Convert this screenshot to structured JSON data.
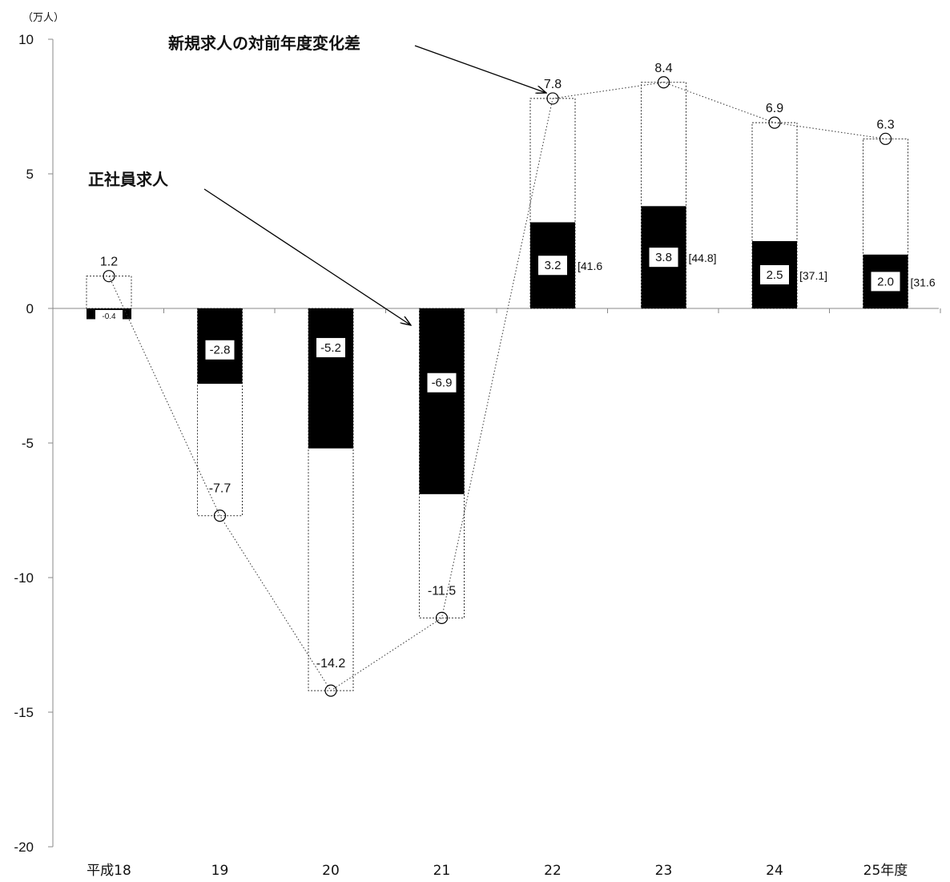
{
  "chart_data": {
    "type": "bar",
    "unit_label": "（万人）",
    "categories": [
      "平成18",
      "19",
      "20",
      "21",
      "22",
      "23",
      "24",
      "25年度"
    ],
    "ylim": [
      -20,
      10
    ],
    "yticks": [
      "10",
      "5",
      "0",
      "-5",
      "-10",
      "-15",
      "-20"
    ],
    "series": [
      {
        "name": "正社員求人",
        "values": [
          -0.4,
          -2.8,
          -5.2,
          -6.9,
          3.2,
          3.8,
          2.5,
          2.0
        ],
        "labels": [
          "-0.4",
          "-2.8",
          "-5.2",
          "-6.9",
          "3.2",
          "3.8",
          "2.5",
          "2.0"
        ],
        "color": "#000000"
      },
      {
        "name": "新規求人の対前年度変化差",
        "values": [
          1.2,
          -7.7,
          -14.2,
          -11.5,
          7.8,
          8.4,
          6.9,
          6.3
        ],
        "labels": [
          "1.2",
          "-7.7",
          "-14.2",
          "-11.5",
          "7.8",
          "8.4",
          "6.9",
          "6.3"
        ]
      }
    ],
    "bracket_labels": [
      "",
      "",
      "",
      "",
      "[41.6",
      "[44.8]",
      "[37.1]",
      "[31.6"
    ],
    "annotations": {
      "new_openings": "新規求人の対前年度変化差",
      "fulltime": "正社員求人"
    }
  }
}
